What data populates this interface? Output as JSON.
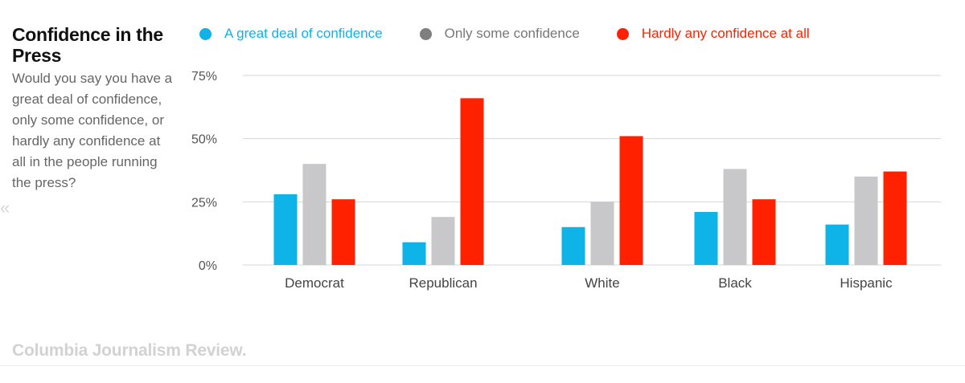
{
  "header": {
    "title": "Confidence in the Press",
    "question": "Would you say you have a great deal of confidence, only some confidence, or hardly any confidence at all in the people running the press?"
  },
  "legend": {
    "items": [
      {
        "label": "A great deal of confidence",
        "color": "#0eb3e8",
        "text_color": "#0eb3e8"
      },
      {
        "label": "Only some confidence",
        "color": "#7f7f7f",
        "text_color": "#777777"
      },
      {
        "label": "Hardly any confidence at all",
        "color": "#ff2100",
        "text_color": "#ff2100"
      }
    ]
  },
  "footer": {
    "brand": "Columbia Journalism Review."
  },
  "colors": {
    "great_deal": "#0eb3e8",
    "only_some": "#c8c8ca",
    "hardly_any": "#ff2100",
    "grid": "#d5d5d5"
  },
  "chart_data": {
    "type": "bar",
    "title": "Confidence in the Press",
    "xlabel": "",
    "ylabel": "",
    "ylim": [
      0,
      75
    ],
    "yticks": [
      0,
      25,
      50,
      75
    ],
    "ytick_labels": [
      "0%",
      "25%",
      "50%",
      "75%"
    ],
    "grid": true,
    "legend_position": "top",
    "categories": [
      "Democrat",
      "Republican",
      "White",
      "Black",
      "Hispanic"
    ],
    "series": [
      {
        "name": "A great deal of confidence",
        "values": [
          28,
          9,
          15,
          21,
          16
        ]
      },
      {
        "name": "Only some confidence",
        "values": [
          40,
          19,
          25,
          38,
          35
        ]
      },
      {
        "name": "Hardly any confidence at all",
        "values": [
          26,
          66,
          51,
          26,
          37
        ]
      }
    ]
  }
}
